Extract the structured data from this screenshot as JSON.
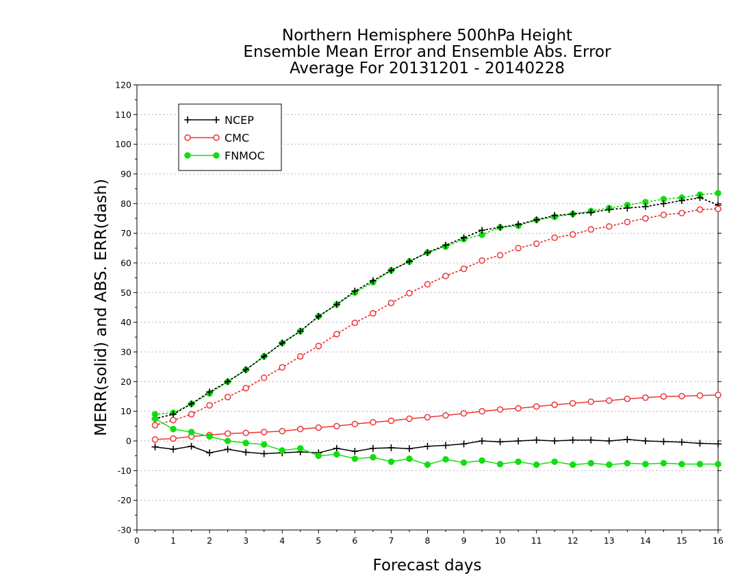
{
  "chart_data": {
    "type": "line",
    "title": [
      "Northern Hemisphere 500hPa Height",
      "Ensemble Mean Error and Ensemble Abs. Error",
      "Average For 20131201 - 20140228"
    ],
    "xlabel": "Forecast days",
    "ylabel": "MERR(solid) and ABS. ERR(dash)",
    "xlim": [
      0,
      16
    ],
    "ylim": [
      -30,
      120
    ],
    "xticks": [
      0,
      1,
      2,
      3,
      4,
      5,
      6,
      7,
      8,
      9,
      10,
      11,
      12,
      13,
      14,
      15,
      16
    ],
    "yticks": [
      -30,
      -20,
      -10,
      0,
      10,
      20,
      30,
      40,
      50,
      60,
      70,
      80,
      90,
      100,
      110,
      120
    ],
    "grid": "horizontal dotted",
    "legend_position": "top-left",
    "x": [
      0.5,
      1,
      1.5,
      2,
      2.5,
      3,
      3.5,
      4,
      4.5,
      5,
      5.5,
      6,
      6.5,
      7,
      7.5,
      8,
      8.5,
      9,
      9.5,
      10,
      10.5,
      11,
      11.5,
      12,
      12.5,
      13,
      13.5,
      14,
      14.5,
      15,
      15.5,
      16
    ],
    "series": [
      {
        "name": "NCEP",
        "color": "#000000",
        "marker": "plus",
        "mean_error": [
          -2,
          -2.8,
          -1.8,
          -4,
          -2.8,
          -3.8,
          -4.3,
          -4,
          -3.7,
          -4,
          -2.5,
          -3.5,
          -2.5,
          -2.3,
          -2.6,
          -1.8,
          -1.5,
          -1,
          0,
          -0.3,
          0,
          0.3,
          0,
          0.3,
          0.3,
          0,
          0.5,
          0,
          -0.2,
          -0.4,
          -0.8,
          -1
        ],
        "abs_error": [
          7.5,
          9,
          12.5,
          16.5,
          20,
          24,
          28.5,
          33,
          37,
          42,
          46,
          50.5,
          54,
          57.5,
          60.5,
          63.5,
          66,
          68.5,
          71,
          72,
          73,
          74.5,
          76,
          76.5,
          77,
          78,
          78.5,
          79,
          80,
          81,
          82,
          79.5
        ]
      },
      {
        "name": "CMC",
        "color": "#ee3333",
        "marker": "open-circle",
        "mean_error": [
          0.5,
          0.8,
          1.5,
          2,
          2.5,
          2.7,
          3,
          3.3,
          4,
          4.5,
          5,
          5.7,
          6.3,
          6.8,
          7.5,
          8,
          8.6,
          9.3,
          10,
          10.6,
          11,
          11.6,
          12.2,
          12.7,
          13.2,
          13.6,
          14.2,
          14.6,
          15,
          15.1,
          15.3,
          15.5
        ],
        "abs_error": [
          5.3,
          7,
          9,
          12,
          14.8,
          17.8,
          21.3,
          24.8,
          28.5,
          32,
          36,
          39.8,
          43,
          46.5,
          49.8,
          52.8,
          55.6,
          58,
          60.8,
          62.6,
          65,
          66.5,
          68.5,
          69.6,
          71.3,
          72.3,
          73.8,
          75,
          76.2,
          76.8,
          78,
          78.2
        ]
      },
      {
        "name": "FNMOC",
        "color": "#11dd11",
        "marker": "filled-circle",
        "mean_error": [
          7.5,
          4,
          3,
          1.5,
          0,
          -0.7,
          -1.2,
          -3.2,
          -2.5,
          -5,
          -4.5,
          -6,
          -5.5,
          -7,
          -6,
          -8,
          -6.2,
          -7.3,
          -6.6,
          -7.8,
          -7,
          -8,
          -7,
          -8,
          -7.5,
          -8,
          -7.5,
          -7.8,
          -7.5,
          -7.8,
          -7.8,
          -7.8
        ]
      }
    ],
    "fnmoc_abs_error": [
      9,
      9.5,
      12.5,
      16,
      20,
      24,
      28.5,
      33,
      37,
      42,
      46,
      50,
      53.5,
      57.5,
      60.5,
      63.5,
      65.5,
      68,
      69.5,
      72,
      72.5,
      74.5,
      75.5,
      76.5,
      77.5,
      78.5,
      79.5,
      80.5,
      81.5,
      82,
      83,
      83.5
    ]
  }
}
